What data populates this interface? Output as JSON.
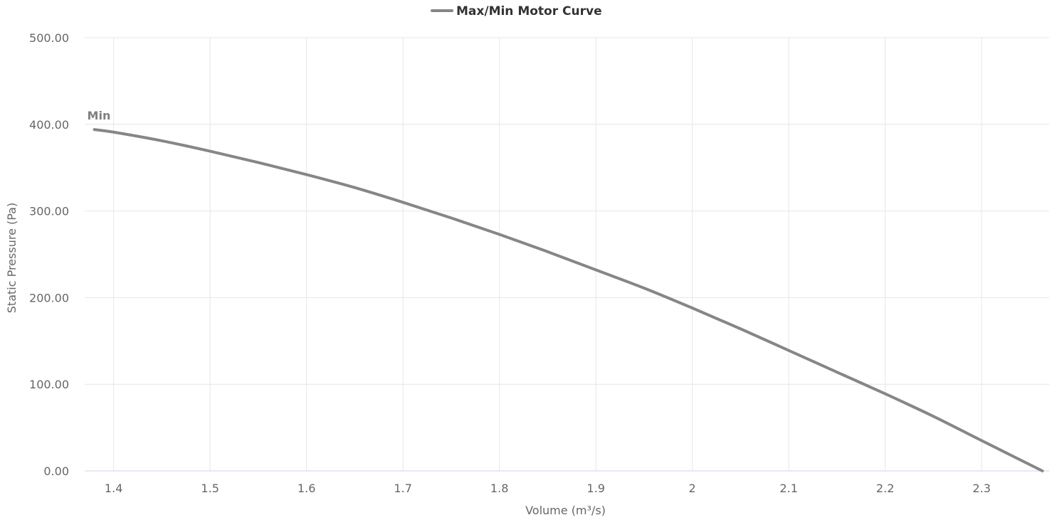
{
  "chart_data": {
    "type": "line",
    "title": "",
    "xlabel": "Volume (m³/s)",
    "ylabel": "Static Pressure (Pa)",
    "xlim": [
      1.37,
      2.37
    ],
    "ylim": [
      0,
      500
    ],
    "x_ticks": [
      1.4,
      1.5,
      1.6,
      1.7,
      1.8,
      1.9,
      2.0,
      2.1,
      2.2,
      2.3
    ],
    "x_tick_labels": [
      "1.4",
      "1.5",
      "1.6",
      "1.7",
      "1.8",
      "1.9",
      "2",
      "2.1",
      "2.2",
      "2.3"
    ],
    "y_ticks": [
      0,
      100,
      200,
      300,
      400,
      500
    ],
    "y_tick_labels": [
      "0.00",
      "100.00",
      "200.00",
      "300.00",
      "400.00",
      "500.00"
    ],
    "grid": true,
    "legend": {
      "placement": "top-center",
      "entries": [
        {
          "name": "Max/Min Motor Curve",
          "color": "#868686"
        }
      ]
    },
    "series": [
      {
        "name": "Max/Min Motor Curve",
        "color": "#868686",
        "x": [
          1.38,
          1.4,
          1.45,
          1.5,
          1.55,
          1.6,
          1.65,
          1.7,
          1.75,
          1.8,
          1.85,
          1.9,
          1.95,
          2.0,
          2.05,
          2.1,
          2.15,
          2.2,
          2.25,
          2.3,
          2.363
        ],
        "y": [
          394,
          391,
          381,
          369,
          356,
          342,
          327,
          310,
          292,
          273,
          253,
          232,
          211,
          188,
          164,
          139,
          114,
          89,
          63,
          35,
          0
        ]
      }
    ],
    "annotations": [
      {
        "text": "Min",
        "x": 1.38,
        "y": 394
      }
    ]
  }
}
